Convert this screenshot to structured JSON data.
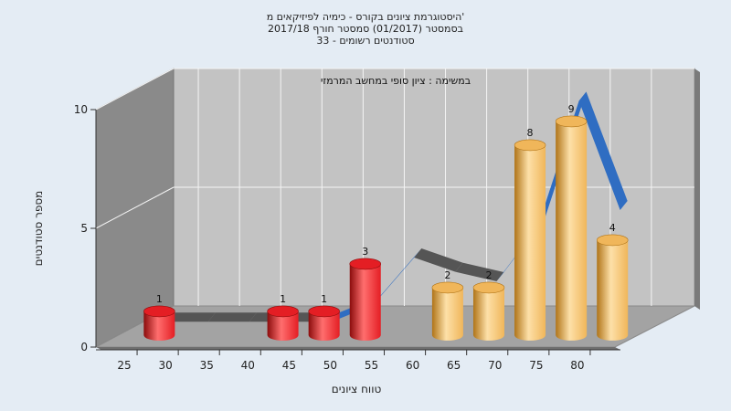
{
  "chart_data": {
    "type": "bar",
    "title_lines": [
      "היסטוגרמת ציונים בקורס - כימיה לפיזיקאים מ'",
      "בסמסטר  (01/2017)  סמסטר חורף 2017/18",
      "סטודנטים רשומים - 33"
    ],
    "annotation": "במשימה : ציון סופי במחשב המרמזי",
    "xlabel": "טווח ציונים",
    "ylabel": "מספר סטודנטים",
    "x_ticks": [
      "25",
      "30",
      "35",
      "40",
      "45",
      "50",
      "55",
      "60",
      "65",
      "70",
      "75",
      "80"
    ],
    "y_ticks": [
      "0",
      "5",
      "10"
    ],
    "ylim": [
      0,
      10
    ],
    "bars": [
      {
        "x": 25,
        "value": 1,
        "label": "1"
      },
      {
        "x": 40,
        "value": 1,
        "label": "1"
      },
      {
        "x": 45,
        "value": 1,
        "label": "1"
      },
      {
        "x": 50,
        "value": 3,
        "label": "3"
      },
      {
        "x": 60,
        "value": 2,
        "label": "2"
      },
      {
        "x": 65,
        "value": 2,
        "label": "2"
      },
      {
        "x": 70,
        "value": 8,
        "label": "8"
      },
      {
        "x": 75,
        "value": 9,
        "label": "9"
      },
      {
        "x": 80,
        "value": 4,
        "label": "4"
      }
    ],
    "trend_line": [
      {
        "x": 25,
        "y": 0.5
      },
      {
        "x": 30,
        "y": 0.5
      },
      {
        "x": 35,
        "y": 0.5
      },
      {
        "x": 40,
        "y": 0.5
      },
      {
        "x": 45,
        "y": 0.5
      },
      {
        "x": 50,
        "y": 1.2
      },
      {
        "x": 55,
        "y": 3.2
      },
      {
        "x": 60,
        "y": 2.6
      },
      {
        "x": 65,
        "y": 2.2
      },
      {
        "x": 70,
        "y": 4.5
      },
      {
        "x": 75,
        "y": 9.8
      },
      {
        "x": 80,
        "y": 5.2
      }
    ],
    "red_below": 55,
    "colors": {
      "bar_red": "#e41e24",
      "bar_red_dark": "#8b0c0c",
      "bar_red_light": "#ff6e6e",
      "bar_gold": "#f0b65a",
      "bar_gold_dark": "#b07418",
      "bar_gold_light": "#fde0a8",
      "line_gray": "#555555",
      "line_blue": "#2f6dc2",
      "wall_back": "#c3c3c3",
      "wall_left": "#8a8a8a",
      "floor": "#a3a3a3",
      "grid": "#f4f4f4",
      "background": "#e4ecf4"
    },
    "grid": true
  }
}
